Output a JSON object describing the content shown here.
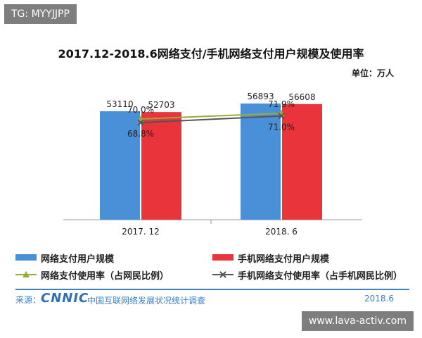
{
  "overlay_tag": "TG: MYYJJPP",
  "overlay_url": "www.lava-activ.com",
  "footer": {
    "source_label": "来源：",
    "logo_text": "CNNIC",
    "survey_text": "中国互联网络发展状况统计调查",
    "date": "2018.6"
  },
  "chart_data": {
    "type": "bar",
    "title": "2017.12-2018.6网络支付/手机网络支付用户规模及使用率",
    "unit": "单位：万人",
    "categories": [
      "2017. 12",
      "2018. 6"
    ],
    "series": [
      {
        "name": "网络支付用户规模",
        "kind": "bar",
        "color": "#4a90d9",
        "values": [
          53110,
          56893
        ],
        "labels": [
          "53110",
          "56893"
        ]
      },
      {
        "name": "手机网络支付用户规模",
        "kind": "bar",
        "color": "#e8343a",
        "values": [
          52703,
          56608
        ],
        "labels": [
          "52703",
          "56608"
        ]
      },
      {
        "name": "网络支付使用率（占网民比例）",
        "kind": "line",
        "color": "#9aaa3a",
        "marker": "triangle",
        "values": [
          70.0,
          71.9
        ],
        "labels": [
          "70.0%",
          "71.9%"
        ]
      },
      {
        "name": "手机网络支付使用率（占手机网民比例）",
        "kind": "line",
        "color": "#555555",
        "marker": "x",
        "values": [
          68.8,
          71.0
        ],
        "labels": [
          "68.8%",
          "71.0%"
        ]
      }
    ],
    "legend_position": "bottom",
    "grid": false
  }
}
